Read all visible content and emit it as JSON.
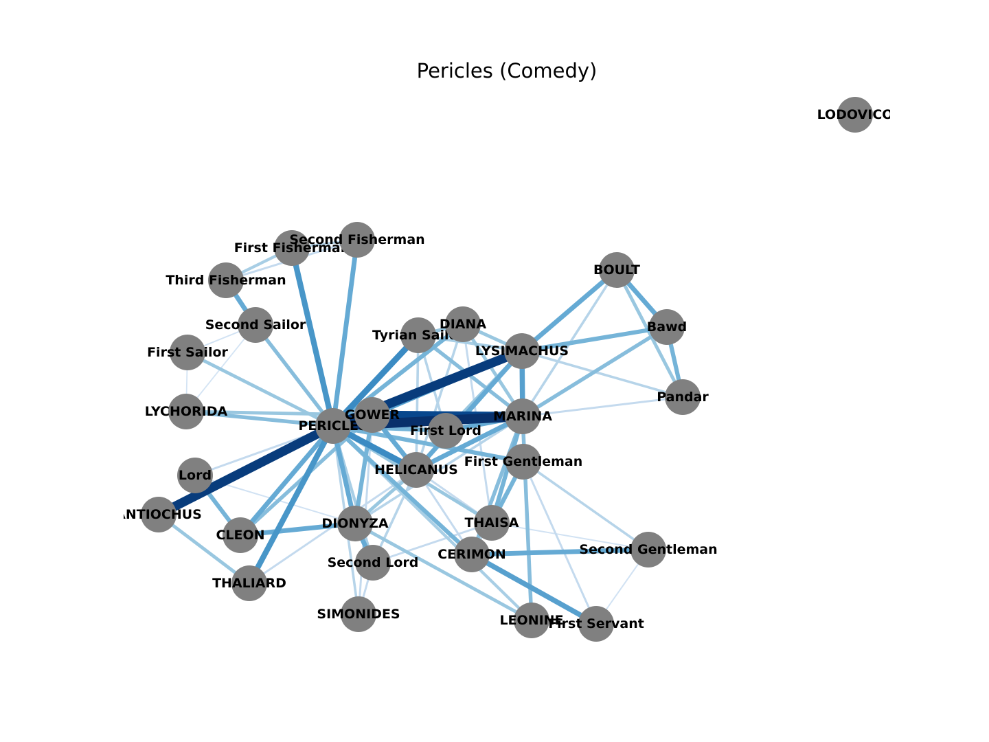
{
  "title": "Pericles (Comedy)",
  "colors": {
    "node": "#808080",
    "edge_light": "#deebf7",
    "edge_dark": "#08306b"
  },
  "nodes": [
    {
      "id": "LODOVICO",
      "label": "LODOVICO"
    },
    {
      "id": "FIRST_FISHERMAN",
      "label": "First Fisherman"
    },
    {
      "id": "SECOND_FISHERMAN",
      "label": "Second Fisherman"
    },
    {
      "id": "THIRD_FISHERMAN",
      "label": "Third Fisherman"
    },
    {
      "id": "SECOND_SAILOR",
      "label": "Second Sailor"
    },
    {
      "id": "FIRST_SAILOR",
      "label": "First Sailor"
    },
    {
      "id": "LYCHORIDA",
      "label": "LYCHORIDA"
    },
    {
      "id": "PERICLES",
      "label": "PERICLES"
    },
    {
      "id": "GOWER",
      "label": "GOWER"
    },
    {
      "id": "TYRIAN_SAILOR",
      "label": "Tyrian Sailor"
    },
    {
      "id": "DIANA",
      "label": "DIANA"
    },
    {
      "id": "LYSIMACHUS",
      "label": "LYSIMACHUS"
    },
    {
      "id": "BOULT",
      "label": "BOULT"
    },
    {
      "id": "BAWD",
      "label": "Bawd"
    },
    {
      "id": "PANDAR",
      "label": "Pandar"
    },
    {
      "id": "MARINA",
      "label": "MARINA"
    },
    {
      "id": "FIRST_LORD",
      "label": "First Lord"
    },
    {
      "id": "FIRST_GENTLEMAN",
      "label": "First Gentleman"
    },
    {
      "id": "HELICANUS",
      "label": "HELICANUS"
    },
    {
      "id": "LORD",
      "label": "Lord"
    },
    {
      "id": "ANTIOCHUS",
      "label": "ANTIOCHUS"
    },
    {
      "id": "CLEON",
      "label": "CLEON"
    },
    {
      "id": "DIONYZA",
      "label": "DIONYZA"
    },
    {
      "id": "THAISA",
      "label": "THAISA"
    },
    {
      "id": "SECOND_GENTLEMAN",
      "label": "Second Gentleman"
    },
    {
      "id": "CERIMON",
      "label": "CERIMON"
    },
    {
      "id": "SECOND_LORD",
      "label": "Second Lord"
    },
    {
      "id": "THALIARD",
      "label": "THALIARD"
    },
    {
      "id": "SIMONIDES",
      "label": "SIMONIDES"
    },
    {
      "id": "LEONINE",
      "label": "LEONINE"
    },
    {
      "id": "FIRST_SERVANT",
      "label": "First Servant"
    }
  ],
  "edges": [
    {
      "source": "PERICLES",
      "target": "FIRST_FISHERMAN",
      "weight": 0.55
    },
    {
      "source": "PERICLES",
      "target": "SECOND_FISHERMAN",
      "weight": 0.45
    },
    {
      "source": "FIRST_FISHERMAN",
      "target": "SECOND_FISHERMAN",
      "weight": 0.2
    },
    {
      "source": "FIRST_FISHERMAN",
      "target": "THIRD_FISHERMAN",
      "weight": 0.25
    },
    {
      "source": "SECOND_FISHERMAN",
      "target": "THIRD_FISHERMAN",
      "weight": 0.15
    },
    {
      "source": "THIRD_FISHERMAN",
      "target": "SECOND_SAILOR",
      "weight": 0.45
    },
    {
      "source": "PERICLES",
      "target": "SECOND_SAILOR",
      "weight": 0.35
    },
    {
      "source": "PERICLES",
      "target": "FIRST_SAILOR",
      "weight": 0.3
    },
    {
      "source": "FIRST_SAILOR",
      "target": "SECOND_SAILOR",
      "weight": 0.08
    },
    {
      "source": "FIRST_SAILOR",
      "target": "LYCHORIDA",
      "weight": 0.06
    },
    {
      "source": "SECOND_SAILOR",
      "target": "LYCHORIDA",
      "weight": 0.06
    },
    {
      "source": "PERICLES",
      "target": "LYCHORIDA",
      "weight": 0.35
    },
    {
      "source": "GOWER",
      "target": "LYCHORIDA",
      "weight": 0.3
    },
    {
      "source": "PERICLES",
      "target": "GOWER",
      "weight": 0.4
    },
    {
      "source": "PERICLES",
      "target": "LYSIMACHUS",
      "weight": 0.95
    },
    {
      "source": "PERICLES",
      "target": "MARINA",
      "weight": 1.0
    },
    {
      "source": "PERICLES",
      "target": "TYRIAN_SAILOR",
      "weight": 0.6
    },
    {
      "source": "PERICLES",
      "target": "DIANA",
      "weight": 0.4
    },
    {
      "source": "PERICLES",
      "target": "FIRST_LORD",
      "weight": 0.4
    },
    {
      "source": "PERICLES",
      "target": "HELICANUS",
      "weight": 0.6
    },
    {
      "source": "PERICLES",
      "target": "FIRST_GENTLEMAN",
      "weight": 0.4
    },
    {
      "source": "PERICLES",
      "target": "ANTIOCHUS",
      "weight": 0.95
    },
    {
      "source": "PERICLES",
      "target": "LORD",
      "weight": 0.15
    },
    {
      "source": "PERICLES",
      "target": "CLEON",
      "weight": 0.45
    },
    {
      "source": "PERICLES",
      "target": "DIONYZA",
      "weight": 0.45
    },
    {
      "source": "PERICLES",
      "target": "THALIARD",
      "weight": 0.55
    },
    {
      "source": "PERICLES",
      "target": "THAISA",
      "weight": 0.3
    },
    {
      "source": "PERICLES",
      "target": "CERIMON",
      "weight": 0.4
    },
    {
      "source": "PERICLES",
      "target": "SECOND_LORD",
      "weight": 0.25
    },
    {
      "source": "PERICLES",
      "target": "SIMONIDES",
      "weight": 0.2
    },
    {
      "source": "PERICLES",
      "target": "LEONINE",
      "weight": 0.25
    },
    {
      "source": "GOWER",
      "target": "MARINA",
      "weight": 0.9
    },
    {
      "source": "GOWER",
      "target": "LYSIMACHUS",
      "weight": 0.5
    },
    {
      "source": "GOWER",
      "target": "HELICANUS",
      "weight": 0.45
    },
    {
      "source": "GOWER",
      "target": "DIONYZA",
      "weight": 0.4
    },
    {
      "source": "GOWER",
      "target": "CLEON",
      "weight": 0.35
    },
    {
      "source": "GOWER",
      "target": "SIMONIDES",
      "weight": 0.15
    },
    {
      "source": "TYRIAN_SAILOR",
      "target": "DIANA",
      "weight": 0.3
    },
    {
      "source": "TYRIAN_SAILOR",
      "target": "LYSIMACHUS",
      "weight": 0.25
    },
    {
      "source": "TYRIAN_SAILOR",
      "target": "MARINA",
      "weight": 0.35
    },
    {
      "source": "TYRIAN_SAILOR",
      "target": "HELICANUS",
      "weight": 0.2
    },
    {
      "source": "TYRIAN_SAILOR",
      "target": "FIRST_LORD",
      "weight": 0.2
    },
    {
      "source": "DIANA",
      "target": "LYSIMACHUS",
      "weight": 0.3
    },
    {
      "source": "DIANA",
      "target": "MARINA",
      "weight": 0.3
    },
    {
      "source": "DIANA",
      "target": "HELICANUS",
      "weight": 0.2
    },
    {
      "source": "DIANA",
      "target": "THAISA",
      "weight": 0.15
    },
    {
      "source": "LYSIMACHUS",
      "target": "MARINA",
      "weight": 0.5
    },
    {
      "source": "LYSIMACHUS",
      "target": "BOULT",
      "weight": 0.45
    },
    {
      "source": "LYSIMACHUS",
      "target": "BAWD",
      "weight": 0.4
    },
    {
      "source": "LYSIMACHUS",
      "target": "PANDAR",
      "weight": 0.2
    },
    {
      "source": "LYSIMACHUS",
      "target": "HELICANUS",
      "weight": 0.45
    },
    {
      "source": "LYSIMACHUS",
      "target": "FIRST_LORD",
      "weight": 0.3
    },
    {
      "source": "LYSIMACHUS",
      "target": "FIRST_GENTLEMAN",
      "weight": 0.15
    },
    {
      "source": "BOULT",
      "target": "BAWD",
      "weight": 0.45
    },
    {
      "source": "BOULT",
      "target": "PANDAR",
      "weight": 0.3
    },
    {
      "source": "BOULT",
      "target": "MARINA",
      "weight": 0.2
    },
    {
      "source": "BAWD",
      "target": "PANDAR",
      "weight": 0.4
    },
    {
      "source": "BAWD",
      "target": "MARINA",
      "weight": 0.35
    },
    {
      "source": "PANDAR",
      "target": "MARINA",
      "weight": 0.15
    },
    {
      "source": "MARINA",
      "target": "FIRST_LORD",
      "weight": 0.45
    },
    {
      "source": "MARINA",
      "target": "HELICANUS",
      "weight": 0.45
    },
    {
      "source": "MARINA",
      "target": "THAISA",
      "weight": 0.4
    },
    {
      "source": "MARINA",
      "target": "CERIMON",
      "weight": 0.35
    },
    {
      "source": "MARINA",
      "target": "DIONYZA",
      "weight": 0.2
    },
    {
      "source": "MARINA",
      "target": "LEONINE",
      "weight": 0.35
    },
    {
      "source": "FIRST_GENTLEMAN",
      "target": "THAISA",
      "weight": 0.4
    },
    {
      "source": "FIRST_GENTLEMAN",
      "target": "SECOND_GENTLEMAN",
      "weight": 0.2
    },
    {
      "source": "FIRST_GENTLEMAN",
      "target": "FIRST_SERVANT",
      "weight": 0.15
    },
    {
      "source": "FIRST_GENTLEMAN",
      "target": "CERIMON",
      "weight": 0.2
    },
    {
      "source": "HELICANUS",
      "target": "DIONYZA",
      "weight": 0.3
    },
    {
      "source": "HELICANUS",
      "target": "THAISA",
      "weight": 0.15
    },
    {
      "source": "HELICANUS",
      "target": "CERIMON",
      "weight": 0.15
    },
    {
      "source": "HELICANUS",
      "target": "SECOND_LORD",
      "weight": 0.2
    },
    {
      "source": "LORD",
      "target": "CLEON",
      "weight": 0.4
    },
    {
      "source": "LORD",
      "target": "DIONYZA",
      "weight": 0.08
    },
    {
      "source": "ANTIOCHUS",
      "target": "THALIARD",
      "weight": 0.3
    },
    {
      "source": "CLEON",
      "target": "DIONYZA",
      "weight": 0.45
    },
    {
      "source": "DIONYZA",
      "target": "SECOND_LORD",
      "weight": 0.45
    },
    {
      "source": "DIONYZA",
      "target": "LEONINE",
      "weight": 0.3
    },
    {
      "source": "CERIMON",
      "target": "SECOND_GENTLEMAN",
      "weight": 0.45
    },
    {
      "source": "CERIMON",
      "target": "FIRST_SERVANT",
      "weight": 0.5
    },
    {
      "source": "THAISA",
      "target": "SECOND_GENTLEMAN",
      "weight": 0.08
    },
    {
      "source": "THAISA",
      "target": "SECOND_LORD",
      "weight": 0.15
    },
    {
      "source": "SECOND_LORD",
      "target": "SIMONIDES",
      "weight": 0.15
    },
    {
      "source": "SECOND_GENTLEMAN",
      "target": "FIRST_SERVANT",
      "weight": 0.08
    },
    {
      "source": "THALIARD",
      "target": "HELICANUS",
      "weight": 0.15
    }
  ]
}
